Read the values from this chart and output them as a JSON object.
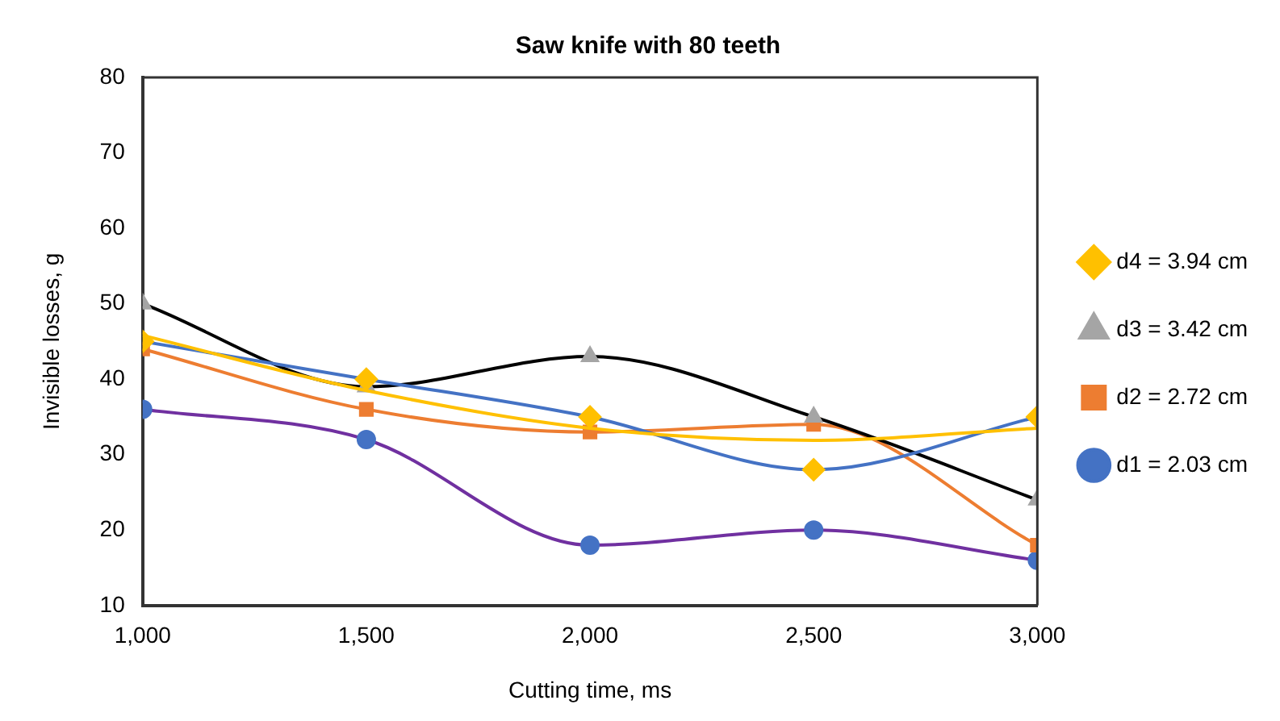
{
  "chart_data": {
    "type": "line",
    "title": "Saw knife with 80 teeth",
    "xlabel": "Cutting time, ms",
    "ylabel": "Invisible losses, g",
    "x": [
      1000,
      1500,
      2000,
      2500,
      3000
    ],
    "series": [
      {
        "name": "d1 = 2.03 cm",
        "color": "#7030a0",
        "colors": [
          "#4472c4",
          "#4472c4",
          "#4472c4",
          "#4472c4",
          "#4472c4"
        ],
        "marker": "circle",
        "values": [
          36,
          32,
          18,
          20,
          16
        ]
      },
      {
        "name": "d2 = 2.72 cm",
        "color": "#ed7d31",
        "colors": [
          "#ed7d31",
          "#ed7d31",
          "#ed7d31",
          "#ed7d31",
          "#ed7d31"
        ],
        "marker": "square",
        "values": [
          44,
          36,
          33,
          34,
          18
        ]
      },
      {
        "name": "d3 = 3.42 cm",
        "color": "#000000",
        "colors": [
          "#a5a5a5",
          "#a5a5a5",
          "#a5a5a5",
          "#a5a5a5",
          "#a5a5a5"
        ],
        "marker": "triangle",
        "values": [
          50,
          39,
          43,
          35,
          24
        ]
      },
      {
        "name": "d4 = 3.94 cm",
        "color": "#4472c4",
        "colors": [
          "#ffc000",
          "#ffc000",
          "#ffc000",
          "#ffc000",
          "#ffc000"
        ],
        "marker": "diamond",
        "values": [
          45,
          40,
          35,
          28,
          35
        ]
      },
      {
        "type": "line",
        "color": "#ffc000",
        "marker": "none",
        "x": [
          1000,
          1500,
          2000,
          2500,
          3000
        ],
        "values": [
          45.8,
          38.5,
          33.5,
          31.9,
          33.5
        ]
      }
    ],
    "xlim": [
      1000,
      3000
    ],
    "xticks": [
      {
        "value": 1000,
        "label": "1,000"
      },
      {
        "value": 1500,
        "label": "1,500"
      },
      {
        "value": 2000,
        "label": "2,000"
      },
      {
        "value": 2500,
        "label": "2,500"
      },
      {
        "value": 3000,
        "label": "3,000"
      }
    ],
    "ylim": [
      10,
      80
    ],
    "yticks": [
      10,
      20,
      30,
      40,
      50,
      60,
      70,
      80
    ],
    "grid": false,
    "legend": "right"
  }
}
